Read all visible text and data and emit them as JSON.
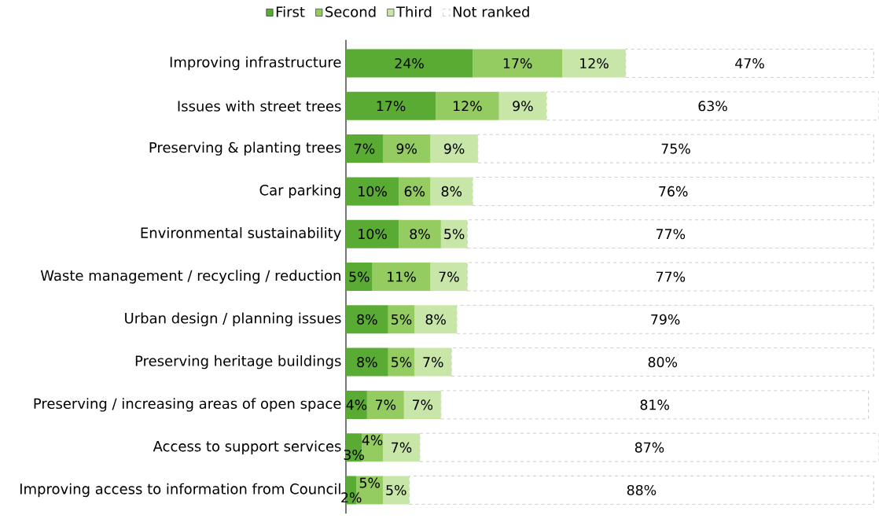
{
  "chart_data": {
    "type": "bar",
    "orientation": "horizontal",
    "stacked": true,
    "legend": "top",
    "tick_labels": "y",
    "xlim": [
      0,
      101
    ],
    "categories": [
      "Improving infrastructure",
      "Issues with street trees",
      "Preserving & planting trees",
      "Car parking",
      "Environmental sustainability",
      "Waste management / recycling / reduction",
      "Urban design / planning issues",
      "Preserving heritage buildings",
      "Preserving / increasing areas of open space",
      "Access to support services",
      "Improving access to information from Council"
    ],
    "series": [
      {
        "name": "First",
        "color": "#5aab34",
        "values": [
          24,
          17,
          7,
          10,
          10,
          5,
          8,
          8,
          4,
          3,
          2
        ],
        "value_labels": [
          "24%",
          "17%",
          "7%",
          "10%",
          "10%",
          "5%",
          "8%",
          "8%",
          "4%",
          "3%",
          "2%"
        ]
      },
      {
        "name": "Second",
        "color": "#94cc62",
        "values": [
          17,
          12,
          9,
          6,
          8,
          11,
          5,
          5,
          7,
          4,
          5
        ],
        "value_labels": [
          "17%",
          "12%",
          "9%",
          "6%",
          "8%",
          "11%",
          "5%",
          "5%",
          "7%",
          "4%",
          "5%"
        ]
      },
      {
        "name": "Third",
        "color": "#c8e6a8",
        "values": [
          12,
          9,
          9,
          8,
          5,
          7,
          8,
          7,
          7,
          7,
          5
        ],
        "value_labels": [
          "12%",
          "9%",
          "9%",
          "8%",
          "5%",
          "7%",
          "8%",
          "7%",
          "7%",
          "7%",
          "5%"
        ]
      },
      {
        "name": "Not ranked",
        "color": "#ffffff",
        "values": [
          47,
          63,
          75,
          76,
          77,
          77,
          79,
          80,
          81,
          87,
          88
        ],
        "value_labels": [
          "47%",
          "63%",
          "75%",
          "76%",
          "77%",
          "77%",
          "79%",
          "80%",
          "81%",
          "87%",
          "88%"
        ]
      }
    ]
  }
}
